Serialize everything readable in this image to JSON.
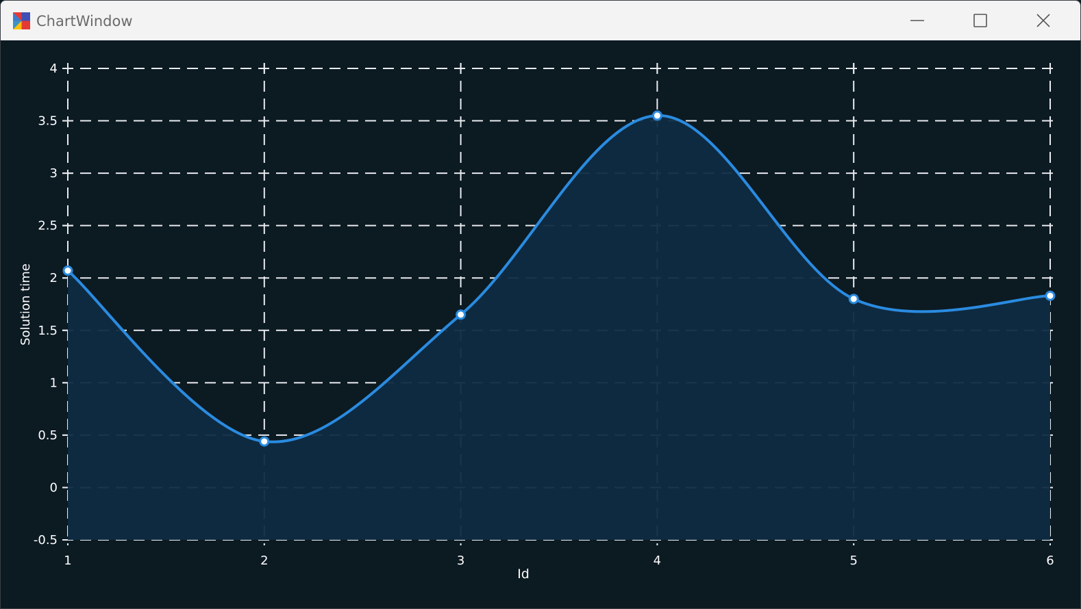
{
  "window": {
    "title": "ChartWindow",
    "icons": {
      "app": "app-icon",
      "minimize": "minimize-icon",
      "maximize": "maximize-icon",
      "close": "close-icon"
    }
  },
  "colors": {
    "background": "#0c1a22",
    "line": "#2a8be0",
    "area": "#0f2b42",
    "grid": "#e9ecef",
    "text": "#ffffff"
  },
  "chart_data": {
    "type": "area",
    "title": "",
    "xlabel": "Id",
    "ylabel": "Solution time",
    "x": [
      1,
      2,
      3,
      4,
      5,
      6
    ],
    "values": [
      2.07,
      0.44,
      1.65,
      3.55,
      1.8,
      1.83
    ],
    "xlim": [
      1,
      6
    ],
    "ylim": [
      -0.5,
      4
    ],
    "x_ticks": [
      "1",
      "2",
      "3",
      "4",
      "5",
      "6"
    ],
    "y_ticks": [
      "-0.5",
      "0",
      "0.5",
      "1",
      "1.5",
      "2",
      "2.5",
      "3",
      "3.5",
      "4"
    ],
    "grid": true,
    "smooth": true,
    "markers": true
  }
}
